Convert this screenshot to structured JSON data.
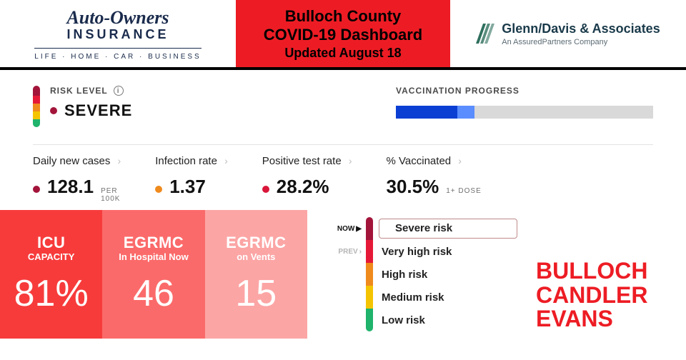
{
  "colors": {
    "brand_red": "#ed1c24",
    "severe_dot": "#a3143a",
    "infection_dot": "#ef8a1d",
    "positive_dot": "#d9163a",
    "tile_shades": [
      "#f73b3b",
      "#fb6a6a",
      "#fca5a5"
    ],
    "vax_track": "#d9d9d9",
    "vax_dark_blue": "#0b3fd4",
    "vax_light_blue": "#5a8dff",
    "risk_pill": [
      "#a3143a",
      "#e51937",
      "#ef8a1d",
      "#f5c400",
      "#1fb36b"
    ],
    "legend_bars": [
      "#a3143a",
      "#e51937",
      "#ef8a1d",
      "#f5c400",
      "#1fb36b"
    ],
    "county_text": "#ed1c24"
  },
  "header": {
    "sponsor_left": {
      "main": "Auto-Owners",
      "sub": "INSURANCE",
      "tag": "LIFE · HOME · CAR · BUSINESS"
    },
    "center": {
      "line1": "Bulloch County",
      "line2": "COVID-19 Dashboard",
      "updated": "Updated August 18"
    },
    "sponsor_right": {
      "main": "Glenn/Davis & Associates",
      "sub": "An AssuredPartners Company"
    }
  },
  "risk": {
    "label": "RISK LEVEL",
    "value": "SEVERE",
    "dot_color": "#a3143a",
    "pill_segments": [
      {
        "color": "#a3143a",
        "h": 14
      },
      {
        "color": "#e51937",
        "h": 11
      },
      {
        "color": "#ef8a1d",
        "h": 11
      },
      {
        "color": "#f5c400",
        "h": 11
      },
      {
        "color": "#1fb36b",
        "h": 11
      }
    ]
  },
  "vaccination": {
    "title": "VACCINATION PROGRESS",
    "full_pct": 24,
    "one_dose_pct": 30.5
  },
  "stats": [
    {
      "label": "Daily new cases",
      "dot": "#a3143a",
      "value": "128.1",
      "unit_top": "PER",
      "unit_bot": "100K"
    },
    {
      "label": "Infection rate",
      "dot": "#ef8a1d",
      "value": "1.37"
    },
    {
      "label": "Positive test rate",
      "dot": "#d9163a",
      "value": "28.2%"
    },
    {
      "label": "% Vaccinated",
      "dot": "",
      "value": "30.5%",
      "unit_inline": "1+ DOSE"
    }
  ],
  "tiles": [
    {
      "title": "ICU",
      "sub": "CAPACITY",
      "value": "81%",
      "bg": "#f73b3b"
    },
    {
      "title": "EGRMC",
      "sub": "In Hospital Now",
      "value": "46",
      "bg": "#fb6a6a"
    },
    {
      "title": "EGRMC",
      "sub": "on Vents",
      "value": "15",
      "bg": "#fca5a5"
    }
  ],
  "legend": {
    "now_label": "NOW",
    "prev_label": "PREV",
    "rows": [
      {
        "bar": "#a3143a",
        "text": "Severe risk",
        "is_now": true
      },
      {
        "bar": "#e51937",
        "text": "Very high risk",
        "is_prev": true
      },
      {
        "bar": "#ef8a1d",
        "text": "High risk"
      },
      {
        "bar": "#f5c400",
        "text": "Medium risk"
      },
      {
        "bar": "#1fb36b",
        "text": "Low risk"
      }
    ]
  },
  "counties": [
    "BULLOCH",
    "CANDLER",
    "EVANS"
  ]
}
